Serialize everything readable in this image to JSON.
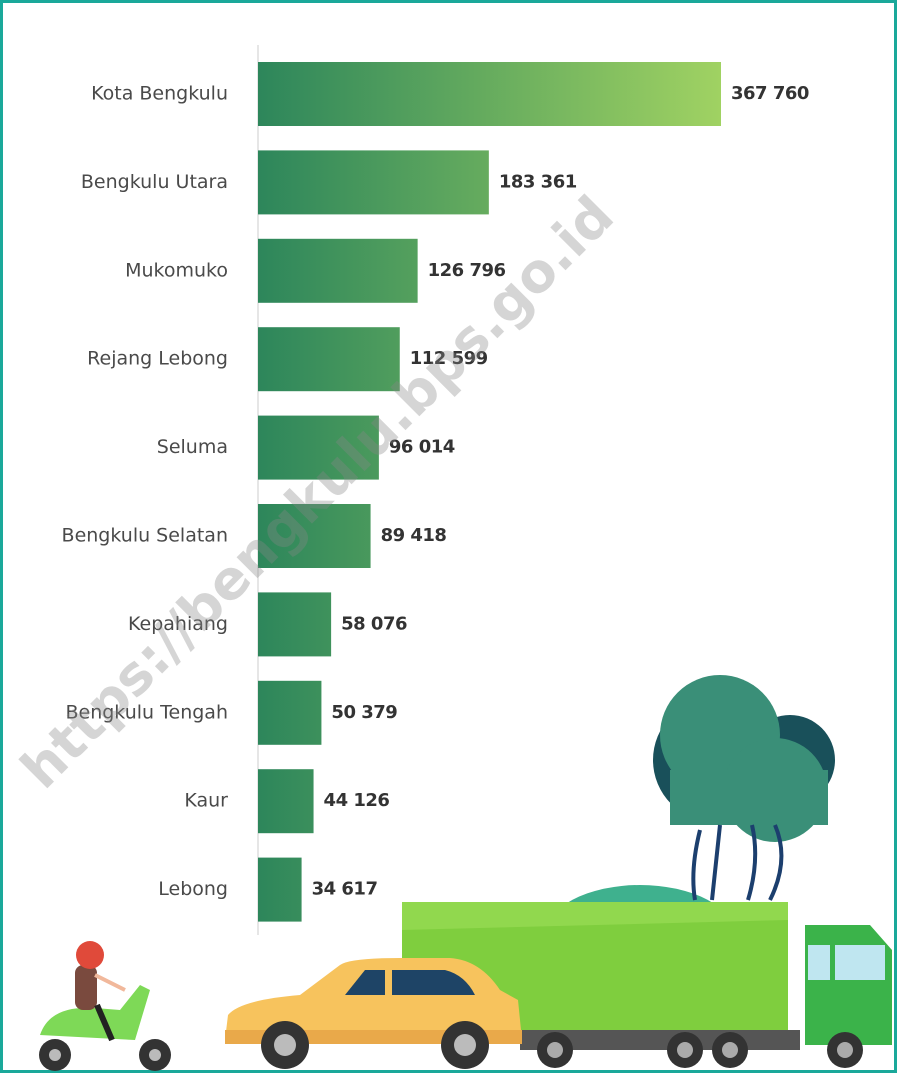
{
  "chart_data": {
    "type": "bar",
    "orientation": "horizontal",
    "categories": [
      "Kota Bengkulu",
      "Bengkulu Utara",
      "Mukomuko",
      "Rejang Lebong",
      "Seluma",
      "Bengkulu Selatan",
      "Kepahiang",
      "Bengkulu Tengah",
      "Kaur",
      "Lebong"
    ],
    "values": [
      367760,
      183361,
      126796,
      112599,
      96014,
      89418,
      58076,
      50379,
      44126,
      34617
    ],
    "value_labels": [
      "367 760",
      "183 361",
      "126 796",
      "112 599",
      "96 014",
      "89 418",
      "58 076",
      "50 379",
      "44 126",
      "34 617"
    ],
    "color": "#2d865b",
    "gradient_end": "#a0d262",
    "watermark": "https://bengkulu.bps.go.id"
  }
}
